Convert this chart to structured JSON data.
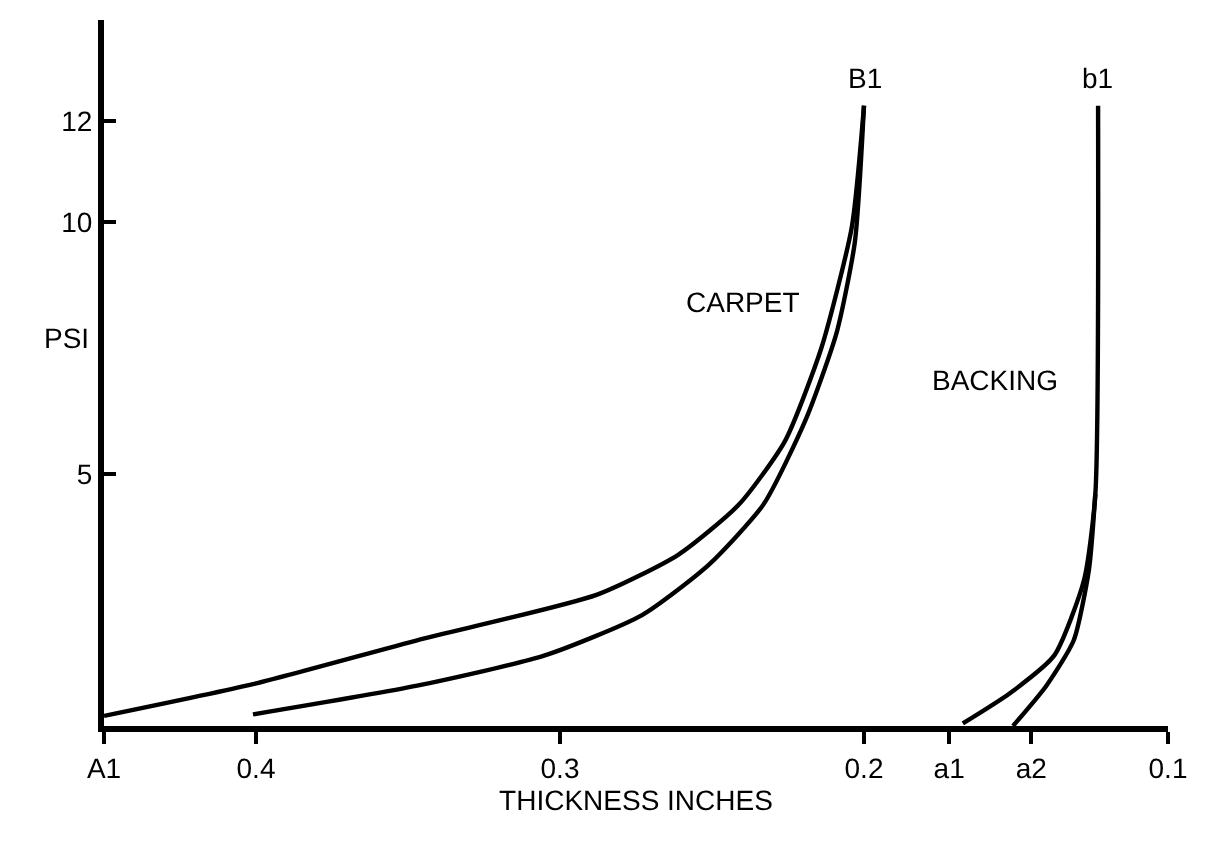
{
  "chart_data": {
    "type": "line",
    "xlabel": "THICKNESS INCHES",
    "ylabel": "PSI",
    "xlim": [
      0.45,
      0.1
    ],
    "ylim": [
      0,
      14
    ],
    "xticks": [
      {
        "value": 0.45,
        "label": "A1"
      },
      0.4,
      0.3,
      0.2,
      {
        "value": 0.172,
        "label": "a1"
      },
      {
        "value": 0.145,
        "label": "a2"
      },
      0.1
    ],
    "yticks": [
      5,
      10,
      12
    ],
    "marker": "none",
    "line_style": "solid",
    "series": [
      {
        "color": "#000000",
        "x": [
          0.45,
          0.401,
          0.347,
          0.288,
          0.261,
          0.241,
          0.226,
          0.214,
          0.204,
          0.2
        ],
        "values": [
          0.2,
          0.83,
          1.7,
          2.6,
          3.4,
          4.4,
          5.65,
          7.5,
          9.9,
          12.3
        ]
      },
      {
        "color": "#000000",
        "x": [
          0.401,
          0.347,
          0.305,
          0.273,
          0.251,
          0.233,
          0.219,
          0.209,
          0.203,
          0.2
        ],
        "values": [
          0.23,
          0.8,
          1.4,
          2.2,
          3.2,
          4.4,
          6.1,
          7.8,
          9.6,
          12.3
        ]
      },
      {
        "color": "#000000",
        "x": [
          0.1675,
          0.152,
          0.1374,
          0.1276,
          0.1239,
          0.123
        ],
        "values": [
          0.05,
          0.65,
          1.4,
          2.9,
          4.6,
          12.3
        ]
      },
      {
        "color": "#000000",
        "x": [
          0.151,
          0.14,
          0.131,
          0.126,
          0.1239
        ],
        "values": [
          0,
          0.8,
          1.7,
          3.1,
          4.6
        ]
      }
    ],
    "annotations": [
      {
        "text": "B1",
        "x": 0.2,
        "y": 12.3
      },
      {
        "text": "b1",
        "x": 0.123,
        "y": 12.3
      },
      "CARPET",
      "BACKING"
    ]
  }
}
